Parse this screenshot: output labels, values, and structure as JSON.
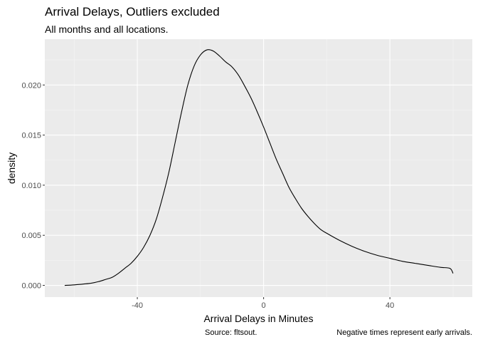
{
  "chart_data": {
    "type": "area",
    "title": "Arrival Delays, Outliers excluded",
    "subtitle": "All months and all locations.",
    "xlabel": "Arrival Delays in Minutes",
    "ylabel": "density",
    "caption_left": "Source: fltsout.",
    "caption_right": "Negative times represent early arrivals.",
    "xlim": [
      -69.3,
      66.1
    ],
    "ylim": [
      -0.00117,
      0.02457
    ],
    "x_ticks": [
      -40,
      0,
      40
    ],
    "x_tick_labels": [
      "-40",
      "0",
      "40"
    ],
    "y_ticks": [
      0.0,
      0.005,
      0.01,
      0.015,
      0.02
    ],
    "y_tick_labels": [
      "0.000",
      "0.005",
      "0.010",
      "0.015",
      "0.020"
    ],
    "grid": true,
    "series": [
      {
        "x": [
          -63,
          -60,
          -55,
          -52,
          -50,
          -48,
          -46,
          -44,
          -42,
          -40,
          -38,
          -36,
          -34,
          -32,
          -30,
          -28,
          -26,
          -24,
          -22,
          -20,
          -18,
          -16,
          -14,
          -12,
          -10,
          -8,
          -6,
          -4,
          -2,
          0,
          2,
          4,
          6,
          8,
          10,
          12,
          14,
          16,
          18,
          20,
          24,
          28,
          32,
          36,
          40,
          44,
          48,
          52,
          56,
          59,
          60
        ],
        "y": [
          0.0,
          5e-05,
          0.0002,
          0.0004,
          0.0006,
          0.0008,
          0.0012,
          0.0017,
          0.0022,
          0.0029,
          0.0038,
          0.005,
          0.0066,
          0.0088,
          0.0113,
          0.0143,
          0.0173,
          0.02,
          0.0219,
          0.023,
          0.0235,
          0.0234,
          0.0229,
          0.0223,
          0.0218,
          0.021,
          0.0199,
          0.0187,
          0.0173,
          0.0158,
          0.0142,
          0.0126,
          0.0112,
          0.0098,
          0.0087,
          0.0077,
          0.0069,
          0.0062,
          0.0056,
          0.0052,
          0.0045,
          0.0039,
          0.0034,
          0.003,
          0.0027,
          0.0024,
          0.0022,
          0.002,
          0.0018,
          0.0017,
          0.0012
        ]
      }
    ]
  }
}
